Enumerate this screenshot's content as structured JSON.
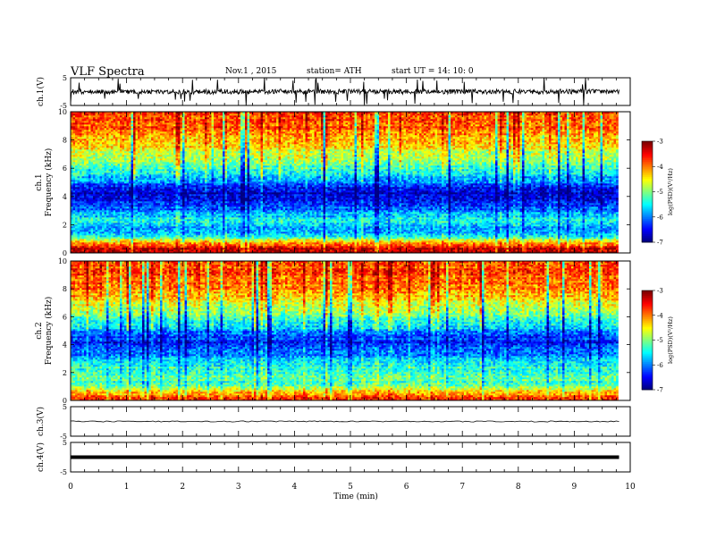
{
  "header": {
    "title": "VLF  Spectra",
    "date": "Nov.1  , 2015",
    "station": "station= ATH",
    "start": "start  UT  =    14: 10: 0"
  },
  "chart_data": [
    {
      "type": "line",
      "panel": "ch1-waveform",
      "ylabel": "ch.1(V)",
      "ylim": [
        -5,
        5
      ],
      "yticks": [
        "5",
        "-5"
      ],
      "x_range_min": [
        0,
        9.8
      ],
      "approx_level_V": 0,
      "noise_amplitude_V": 1.5
    },
    {
      "type": "heatmap",
      "panel": "ch1-spectrogram",
      "ylabel_side": "ch.1",
      "ylabel": "Frequency  (kHz)",
      "ylim": [
        0,
        10
      ],
      "yticks": [
        "0",
        "2",
        "4",
        "6",
        "8",
        "10"
      ],
      "colorbar": {
        "label": "log(PSD)(V²/Hz)",
        "range": [
          -7,
          -3
        ],
        "ticks": [
          "-3",
          "-4",
          "-5",
          "-6",
          "-7"
        ]
      },
      "band_profile_logPSD": [
        {
          "f_kHz": 0.25,
          "value": -3.2
        },
        {
          "f_kHz": 0.75,
          "value": -4.2
        },
        {
          "f_kHz": 1.25,
          "value": -5.6
        },
        {
          "f_kHz": 1.75,
          "value": -5.8
        },
        {
          "f_kHz": 2.25,
          "value": -5.4
        },
        {
          "f_kHz": 2.75,
          "value": -5.7
        },
        {
          "f_kHz": 3.25,
          "value": -6.2
        },
        {
          "f_kHz": 3.75,
          "value": -6.6
        },
        {
          "f_kHz": 4.25,
          "value": -6.7
        },
        {
          "f_kHz": 4.75,
          "value": -6.3
        },
        {
          "f_kHz": 5.25,
          "value": -5.8
        },
        {
          "f_kHz": 5.75,
          "value": -5.4
        },
        {
          "f_kHz": 6.25,
          "value": -5.2
        },
        {
          "f_kHz": 6.75,
          "value": -4.9
        },
        {
          "f_kHz": 7.25,
          "value": -4.6
        },
        {
          "f_kHz": 7.75,
          "value": -4.3
        },
        {
          "f_kHz": 8.25,
          "value": -4.1
        },
        {
          "f_kHz": 8.75,
          "value": -3.9
        },
        {
          "f_kHz": 9.25,
          "value": -3.8
        },
        {
          "f_kHz": 9.75,
          "value": -3.7
        }
      ]
    },
    {
      "type": "heatmap",
      "panel": "ch2-spectrogram",
      "ylabel_side": "ch.2",
      "ylabel": "Frequency  (kHz)",
      "ylim": [
        0,
        10
      ],
      "yticks": [
        "0",
        "2",
        "4",
        "6",
        "8",
        "10"
      ],
      "colorbar": {
        "label": "log(PSD)(V²/Hz)",
        "range": [
          -7,
          -3
        ],
        "ticks": [
          "-3",
          "-4",
          "-5",
          "-6",
          "-7"
        ]
      },
      "band_profile_logPSD": [
        {
          "f_kHz": 0.25,
          "value": -3.6
        },
        {
          "f_kHz": 0.75,
          "value": -4.6
        },
        {
          "f_kHz": 1.25,
          "value": -5.3
        },
        {
          "f_kHz": 1.75,
          "value": -5.1
        },
        {
          "f_kHz": 2.25,
          "value": -5.3
        },
        {
          "f_kHz": 2.75,
          "value": -5.5
        },
        {
          "f_kHz": 3.25,
          "value": -5.9
        },
        {
          "f_kHz": 3.75,
          "value": -6.2
        },
        {
          "f_kHz": 4.25,
          "value": -6.4
        },
        {
          "f_kHz": 4.75,
          "value": -6.1
        },
        {
          "f_kHz": 5.25,
          "value": -5.7
        },
        {
          "f_kHz": 5.75,
          "value": -5.3
        },
        {
          "f_kHz": 6.25,
          "value": -5.0
        },
        {
          "f_kHz": 6.75,
          "value": -4.7
        },
        {
          "f_kHz": 7.25,
          "value": -4.4
        },
        {
          "f_kHz": 7.75,
          "value": -4.2
        },
        {
          "f_kHz": 8.25,
          "value": -4.0
        },
        {
          "f_kHz": 8.75,
          "value": -3.9
        },
        {
          "f_kHz": 9.25,
          "value": -3.8
        },
        {
          "f_kHz": 9.75,
          "value": -3.8
        }
      ]
    },
    {
      "type": "line",
      "panel": "ch3-waveform",
      "ylabel": "ch.3(V)",
      "ylim": [
        -5,
        5
      ],
      "yticks": [
        "5",
        "-5"
      ],
      "x_range_min": [
        0,
        9.8
      ],
      "approx_level_V": 0
    },
    {
      "type": "line",
      "panel": "ch4-waveform",
      "ylabel": "ch.4(V)",
      "ylim": [
        -5,
        5
      ],
      "yticks": [
        "5",
        "-5"
      ],
      "x_range_min": [
        0,
        9.8
      ],
      "approx_level_V": 0
    }
  ],
  "xaxis": {
    "label": "Time  (min)",
    "range": [
      0,
      10
    ],
    "ticks": [
      "0",
      "1",
      "2",
      "3",
      "4",
      "5",
      "6",
      "7",
      "8",
      "9",
      "10"
    ]
  }
}
